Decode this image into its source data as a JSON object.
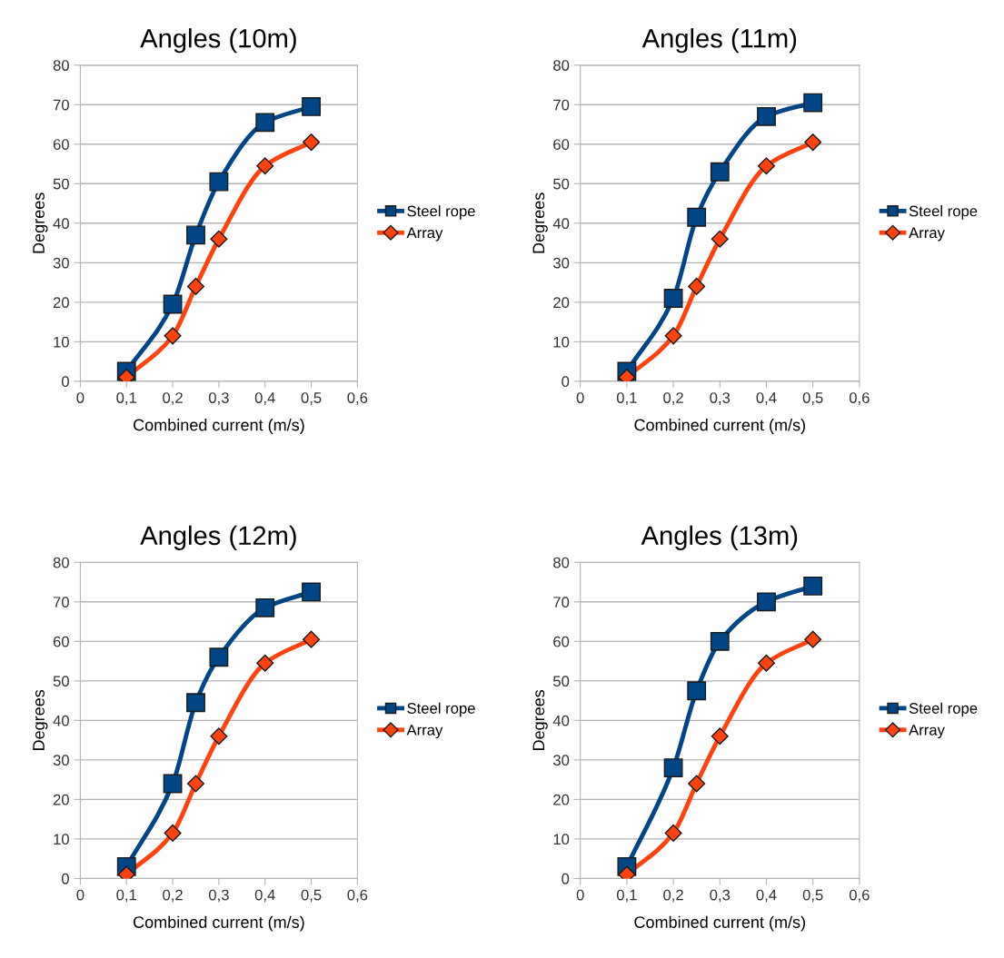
{
  "chart_data": [
    {
      "type": "line",
      "title": "Angles (10m)",
      "xlabel": "Combined current (m/s)",
      "ylabel": "Degrees",
      "x": [
        0.1,
        0.2,
        0.25,
        0.3,
        0.4,
        0.5
      ],
      "series": [
        {
          "name": "Steel rope",
          "color": "#004586",
          "marker": "square",
          "values": [
            2.5,
            19.5,
            37,
            50.5,
            65.5,
            69.5
          ]
        },
        {
          "name": "Array",
          "color": "#ff420e",
          "marker": "diamond",
          "values": [
            1,
            11.5,
            24,
            36,
            54.5,
            60.5
          ]
        }
      ],
      "xlim": [
        0,
        0.6
      ],
      "xticks": [
        0,
        {
          "value": 0.1,
          "label": "0,1"
        },
        {
          "value": 0.2,
          "label": "0,2"
        },
        {
          "value": 0.3,
          "label": "0,3"
        },
        {
          "value": 0.4,
          "label": "0,4"
        },
        {
          "value": 0.5,
          "label": "0,5"
        },
        {
          "value": 0.6,
          "label": "0,6"
        }
      ],
      "ylim": [
        0,
        80
      ],
      "yticks": [
        0,
        10,
        20,
        30,
        40,
        50,
        60,
        70,
        80
      ],
      "grid": "y",
      "legend": "right",
      "line_style": "solid"
    },
    {
      "type": "line",
      "title": "Angles (11m)",
      "xlabel": "Combined current (m/s)",
      "ylabel": "Degrees",
      "x": [
        0.1,
        0.2,
        0.25,
        0.3,
        0.4,
        0.5
      ],
      "series": [
        {
          "name": "Steel rope",
          "color": "#004586",
          "marker": "square",
          "values": [
            2.5,
            21,
            41.5,
            53,
            67,
            70.5
          ]
        },
        {
          "name": "Array",
          "color": "#ff420e",
          "marker": "diamond",
          "values": [
            1,
            11.5,
            24,
            36,
            54.5,
            60.5
          ]
        }
      ],
      "xlim": [
        0,
        0.6
      ],
      "xticks": [
        0,
        {
          "value": 0.1,
          "label": "0,1"
        },
        {
          "value": 0.2,
          "label": "0,2"
        },
        {
          "value": 0.3,
          "label": "0,3"
        },
        {
          "value": 0.4,
          "label": "0,4"
        },
        {
          "value": 0.5,
          "label": "0,5"
        },
        {
          "value": 0.6,
          "label": "0,6"
        }
      ],
      "ylim": [
        0,
        80
      ],
      "yticks": [
        0,
        10,
        20,
        30,
        40,
        50,
        60,
        70,
        80
      ],
      "grid": "y",
      "legend": "right",
      "line_style": "solid"
    },
    {
      "type": "line",
      "title": "Angles (12m)",
      "xlabel": "Combined current (m/s)",
      "ylabel": "Degrees",
      "x": [
        0.1,
        0.2,
        0.25,
        0.3,
        0.4,
        0.5
      ],
      "series": [
        {
          "name": "Steel rope",
          "color": "#004586",
          "marker": "square",
          "values": [
            3,
            24,
            44.5,
            56,
            68.5,
            72.5
          ]
        },
        {
          "name": "Array",
          "color": "#ff420e",
          "marker": "diamond",
          "values": [
            1,
            11.5,
            24,
            36,
            54.5,
            60.5
          ]
        }
      ],
      "xlim": [
        0,
        0.6
      ],
      "xticks": [
        0,
        {
          "value": 0.1,
          "label": "0,1"
        },
        {
          "value": 0.2,
          "label": "0,2"
        },
        {
          "value": 0.3,
          "label": "0,3"
        },
        {
          "value": 0.4,
          "label": "0,4"
        },
        {
          "value": 0.5,
          "label": "0,5"
        },
        {
          "value": 0.6,
          "label": "0,6"
        }
      ],
      "ylim": [
        0,
        80
      ],
      "yticks": [
        0,
        10,
        20,
        30,
        40,
        50,
        60,
        70,
        80
      ],
      "grid": "y",
      "legend": "right",
      "line_style": "solid"
    },
    {
      "type": "line",
      "title": "Angles (13m)",
      "xlabel": "Combined current (m/s)",
      "ylabel": "Degrees",
      "x": [
        0.1,
        0.2,
        0.25,
        0.3,
        0.4,
        0.5
      ],
      "series": [
        {
          "name": "Steel rope",
          "color": "#004586",
          "marker": "square",
          "values": [
            3,
            28,
            47.5,
            60,
            70,
            74
          ]
        },
        {
          "name": "Array",
          "color": "#ff420e",
          "marker": "diamond",
          "values": [
            1,
            11.5,
            24,
            36,
            54.5,
            60.5
          ]
        }
      ],
      "xlim": [
        0,
        0.6
      ],
      "xticks": [
        0,
        {
          "value": 0.1,
          "label": "0,1"
        },
        {
          "value": 0.2,
          "label": "0,2"
        },
        {
          "value": 0.3,
          "label": "0,3"
        },
        {
          "value": 0.4,
          "label": "0,4"
        },
        {
          "value": 0.5,
          "label": "0,5"
        },
        {
          "value": 0.6,
          "label": "0,6"
        }
      ],
      "ylim": [
        0,
        80
      ],
      "yticks": [
        0,
        10,
        20,
        30,
        40,
        50,
        60,
        70,
        80
      ],
      "grid": "y",
      "legend": "right",
      "line_style": "solid"
    }
  ]
}
